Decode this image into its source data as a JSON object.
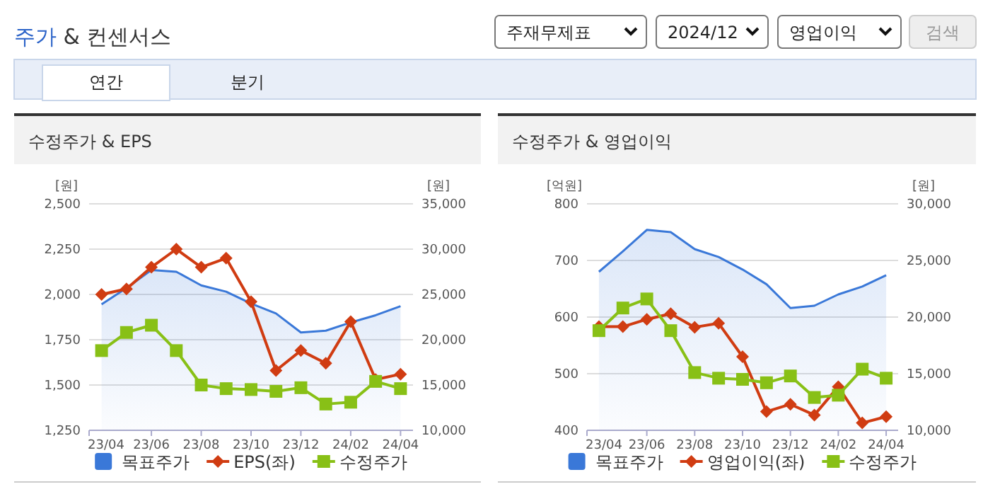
{
  "chart_data": [
    {
      "type": "other",
      "title": "주가 & 컨센서스",
      "annotations": [
        "주재무제표",
        "2024/12",
        "영업이익",
        "검색",
        "연간",
        "분기"
      ]
    },
    {
      "type": "line",
      "title": "수정주가 & EPS",
      "ylabel": "[원]",
      "y2label": "[원]",
      "categories": [
        "23/04",
        null,
        "23/06",
        null,
        "23/08",
        null,
        "23/10",
        null,
        "23/12",
        null,
        "24/02",
        null,
        "24/04"
      ],
      "ylim": [
        1250,
        2500
      ],
      "yticks": [
        {
          "value": 1250,
          "label": "1,250"
        },
        {
          "value": 1500,
          "label": "1,500"
        },
        {
          "value": 1750,
          "label": "1,750"
        },
        {
          "value": 2000,
          "label": "2,000"
        },
        {
          "value": 2250,
          "label": "2,250"
        },
        {
          "value": 2500,
          "label": "2,500"
        }
      ],
      "y2lim": [
        10000,
        35000
      ],
      "y2ticks": [
        {
          "value": 10000,
          "label": "10,000"
        },
        {
          "value": 15000,
          "label": "15,000"
        },
        {
          "value": 20000,
          "label": "20,000"
        },
        {
          "value": 25000,
          "label": "25,000"
        },
        {
          "value": 30000,
          "label": "30,000"
        },
        {
          "value": 35000,
          "label": "35,000"
        }
      ],
      "grid": "y",
      "legend": "bottom",
      "series": [
        {
          "name": "목표주가",
          "type": "area",
          "axis": "y2",
          "color": "#3a78d8",
          "values": [
            23900,
            25700,
            27700,
            27500,
            26000,
            25300,
            24000,
            22900,
            20800,
            21000,
            21900,
            22700,
            23700
          ]
        },
        {
          "name": "EPS(좌)",
          "type": "line",
          "marker": "diamond",
          "color": "#d03c12",
          "values": [
            2000,
            2030,
            2150,
            2250,
            2150,
            2200,
            1960,
            1580,
            1690,
            1620,
            1850,
            1530,
            1560
          ]
        },
        {
          "name": "수정주가",
          "type": "line",
          "axis": "y2",
          "marker": "square",
          "color": "#88c016",
          "values": [
            18800,
            20800,
            21600,
            18800,
            15000,
            14600,
            14500,
            14300,
            14700,
            12900,
            13100,
            15400,
            14600
          ]
        }
      ]
    },
    {
      "type": "line",
      "title": "수정주가 & 영업이익",
      "ylabel": "[억원]",
      "y2label": "[원]",
      "categories": [
        "23/04",
        null,
        "23/06",
        null,
        "23/08",
        null,
        "23/10",
        null,
        "23/12",
        null,
        "24/02",
        null,
        "24/04"
      ],
      "ylim": [
        400,
        800
      ],
      "yticks": [
        400,
        500,
        600,
        700,
        800
      ],
      "y2lim": [
        10000,
        30000
      ],
      "y2ticks": [
        {
          "value": 10000,
          "label": "10,000"
        },
        {
          "value": 15000,
          "label": "15,000"
        },
        {
          "value": 20000,
          "label": "20,000"
        },
        {
          "value": 25000,
          "label": "25,000"
        },
        {
          "value": 30000,
          "label": "30,000"
        }
      ],
      "grid": "y",
      "legend": "bottom",
      "series": [
        {
          "name": "목표주가",
          "type": "area",
          "axis": "y2",
          "color": "#3a78d8",
          "values": [
            24000,
            25800,
            27700,
            27500,
            26000,
            25300,
            24200,
            22900,
            20800,
            21000,
            22000,
            22700,
            23700
          ]
        },
        {
          "name": "영업이익(좌)",
          "type": "line",
          "marker": "diamond",
          "color": "#d03c12",
          "values": [
            583,
            583,
            596,
            606,
            582,
            589,
            530,
            433,
            446,
            427,
            477,
            413,
            424
          ]
        },
        {
          "name": "수정주가",
          "type": "line",
          "axis": "y2",
          "marker": "square",
          "color": "#88c016",
          "values": [
            18800,
            20800,
            21600,
            18800,
            15100,
            14600,
            14500,
            14200,
            14800,
            12900,
            13100,
            15400,
            14600
          ]
        }
      ]
    }
  ]
}
